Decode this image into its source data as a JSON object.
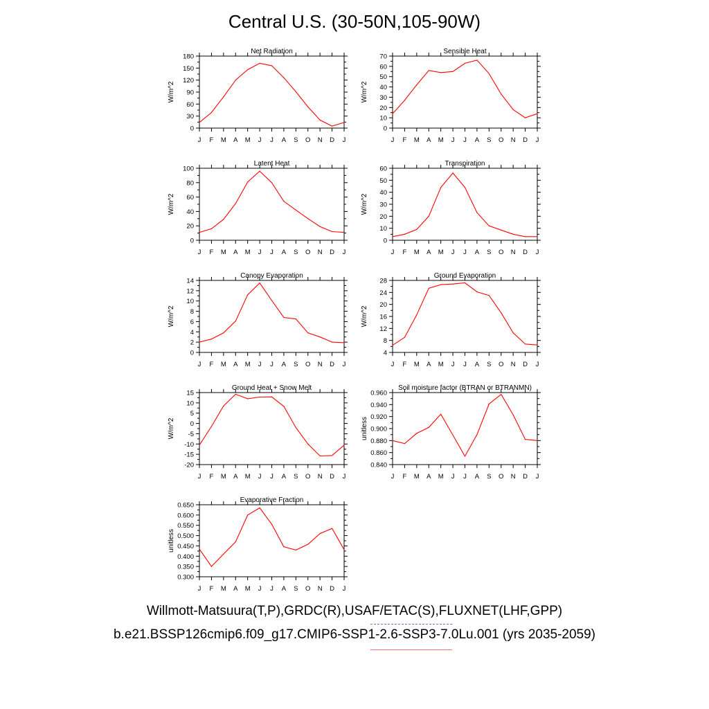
{
  "title": "Central U.S. (30-50N,105-90W)",
  "caption_obs": "Willmott-Matsuura(T,P),GRDC(R),USAF/ETAC(S),FLUXNET(LHF,GPP)",
  "caption_case": "b.e21.BSSP126cmip6.f09_g17.CMIP6-SSP1-2.6-SSP3-7.0Lu.001 (yrs 2035-2059)",
  "colors": {
    "series": "#ff0000",
    "axis": "#000000",
    "obs_legend": "#6f6fd6",
    "case_legend": "#ff7070"
  },
  "chart_data": [
    {
      "type": "line",
      "title": "Net Radiation",
      "ylabel": "W/m^2",
      "categories": [
        "J",
        "F",
        "M",
        "A",
        "M",
        "J",
        "J",
        "A",
        "S",
        "O",
        "N",
        "D",
        "J"
      ],
      "ylim": [
        0,
        180
      ],
      "yticks": [
        "0",
        "30",
        "60",
        "90",
        "120",
        "150",
        "180"
      ],
      "values": [
        14,
        39,
        78,
        120,
        146,
        162,
        156,
        126,
        91,
        53,
        20,
        5,
        14
      ]
    },
    {
      "type": "line",
      "title": "Sensible Heat",
      "ylabel": "W/m^2",
      "categories": [
        "J",
        "F",
        "M",
        "A",
        "M",
        "J",
        "J",
        "A",
        "S",
        "O",
        "N",
        "D",
        "J"
      ],
      "ylim": [
        0,
        70
      ],
      "yticks": [
        "0",
        "10",
        "20",
        "30",
        "40",
        "50",
        "60",
        "70"
      ],
      "values": [
        14,
        27,
        42,
        56,
        54,
        55,
        63,
        66,
        53,
        33,
        18,
        10,
        14
      ]
    },
    {
      "type": "line",
      "title": "Latent Heat",
      "ylabel": "W/m^2",
      "categories": [
        "J",
        "F",
        "M",
        "A",
        "M",
        "J",
        "J",
        "A",
        "S",
        "O",
        "N",
        "D",
        "J"
      ],
      "ylim": [
        0,
        100
      ],
      "yticks": [
        "0",
        "20",
        "40",
        "60",
        "80",
        "100"
      ],
      "values": [
        11,
        16,
        29,
        51,
        81,
        96,
        80,
        54,
        42,
        30,
        19,
        12,
        11
      ]
    },
    {
      "type": "line",
      "title": "Transpiration",
      "ylabel": "W/m^2",
      "categories": [
        "J",
        "F",
        "M",
        "A",
        "M",
        "J",
        "J",
        "A",
        "S",
        "O",
        "N",
        "D",
        "J"
      ],
      "ylim": [
        0,
        60
      ],
      "yticks": [
        "0",
        "10",
        "20",
        "30",
        "40",
        "50",
        "60"
      ],
      "values": [
        3,
        5,
        9,
        20,
        44,
        56,
        44,
        23,
        12,
        8.5,
        5,
        3,
        3
      ]
    },
    {
      "type": "line",
      "title": "Canopy Evaporation",
      "ylabel": "W/m^2",
      "categories": [
        "J",
        "F",
        "M",
        "A",
        "M",
        "J",
        "J",
        "A",
        "S",
        "O",
        "N",
        "D",
        "J"
      ],
      "ylim": [
        0,
        14
      ],
      "yticks": [
        "0",
        "2",
        "4",
        "6",
        "8",
        "10",
        "12",
        "14"
      ],
      "values": [
        2.0,
        2.6,
        3.8,
        6.1,
        11.2,
        13.5,
        10.1,
        6.8,
        6.5,
        3.8,
        3.0,
        2.0,
        1.9
      ]
    },
    {
      "type": "line",
      "title": "Ground Evaporation",
      "ylabel": "W/m^2",
      "categories": [
        "J",
        "F",
        "M",
        "A",
        "M",
        "J",
        "J",
        "A",
        "S",
        "O",
        "N",
        "D",
        "J"
      ],
      "ylim": [
        4,
        28
      ],
      "yticks": [
        "4",
        "8",
        "12",
        "16",
        "20",
        "24",
        "28"
      ],
      "values": [
        6.4,
        9.0,
        16.5,
        25.4,
        26.6,
        26.8,
        27.2,
        24.2,
        23.0,
        17.2,
        10.5,
        6.8,
        6.5
      ]
    },
    {
      "type": "line",
      "title": "Ground Heat + Snow Melt",
      "ylabel": "W/m^2",
      "categories": [
        "J",
        "F",
        "M",
        "A",
        "M",
        "J",
        "J",
        "A",
        "S",
        "O",
        "N",
        "D",
        "J"
      ],
      "ylim": [
        -20,
        15
      ],
      "yticks": [
        "-20",
        "-15",
        "-10",
        "-5",
        "0",
        "5",
        "10",
        "15"
      ],
      "values": [
        -10.5,
        -1.5,
        8.5,
        14.2,
        12.0,
        12.8,
        12.9,
        8.3,
        -2.0,
        -10.0,
        -15.8,
        -15.6,
        -10.5
      ]
    },
    {
      "type": "line",
      "title": "Soil moisture factor (BTRAN or BTRANMN)",
      "ylabel": "unitless",
      "categories": [
        "J",
        "F",
        "M",
        "A",
        "M",
        "J",
        "J",
        "A",
        "S",
        "O",
        "N",
        "D",
        "J"
      ],
      "ylim": [
        0.84,
        0.96
      ],
      "yticks": [
        "0.840",
        "0.860",
        "0.880",
        "0.900",
        "0.920",
        "0.940",
        "0.960"
      ],
      "values": [
        0.88,
        0.875,
        0.892,
        0.902,
        0.924,
        0.889,
        0.854,
        0.89,
        0.941,
        0.957,
        0.923,
        0.882,
        0.88
      ]
    },
    {
      "type": "line",
      "title": "Evaporative Fraction",
      "ylabel": "unitless",
      "categories": [
        "J",
        "F",
        "M",
        "A",
        "M",
        "J",
        "J",
        "A",
        "S",
        "O",
        "N",
        "D",
        "J"
      ],
      "ylim": [
        0.3,
        0.65
      ],
      "yticks": [
        "0.300",
        "0.350",
        "0.400",
        "0.450",
        "0.500",
        "0.550",
        "0.600",
        "0.650"
      ],
      "values": [
        0.435,
        0.35,
        0.41,
        0.47,
        0.6,
        0.635,
        0.555,
        0.446,
        0.43,
        0.458,
        0.51,
        0.535,
        0.432
      ]
    }
  ]
}
